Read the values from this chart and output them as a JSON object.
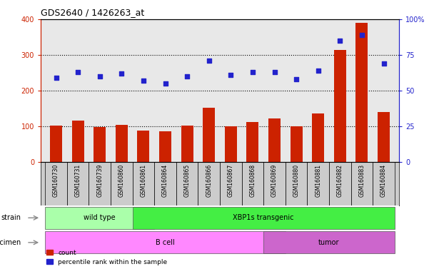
{
  "title": "GDS2640 / 1426263_at",
  "samples": [
    "GSM160730",
    "GSM160731",
    "GSM160739",
    "GSM160860",
    "GSM160861",
    "GSM160864",
    "GSM160865",
    "GSM160866",
    "GSM160867",
    "GSM160868",
    "GSM160869",
    "GSM160880",
    "GSM160881",
    "GSM160882",
    "GSM160883",
    "GSM160884"
  ],
  "counts": [
    101,
    116,
    97,
    103,
    88,
    86,
    101,
    152,
    100,
    111,
    122,
    100,
    136,
    313,
    390,
    139
  ],
  "percentile": [
    59,
    63,
    60,
    62,
    57,
    55,
    60,
    71,
    61,
    63,
    63,
    58,
    64,
    85,
    89,
    69
  ],
  "count_color": "#cc2200",
  "percentile_color": "#2222cc",
  "ylim_left": [
    0,
    400
  ],
  "ylim_right": [
    0,
    100
  ],
  "yticks_left": [
    0,
    100,
    200,
    300,
    400
  ],
  "yticks_right": [
    0,
    25,
    50,
    75,
    100
  ],
  "yticklabels_right": [
    "0",
    "25",
    "50",
    "75",
    "100%"
  ],
  "strain_groups": [
    {
      "label": "wild type",
      "start": 0,
      "end": 4,
      "color": "#aaffaa"
    },
    {
      "label": "XBP1s transgenic",
      "start": 4,
      "end": 15,
      "color": "#44ee44"
    }
  ],
  "specimen_groups": [
    {
      "label": "B cell",
      "start": 0,
      "end": 10,
      "color": "#ff88ff"
    },
    {
      "label": "tumor",
      "start": 10,
      "end": 15,
      "color": "#cc66cc"
    }
  ],
  "strain_label": "strain",
  "specimen_label": "specimen",
  "legend_count": "count",
  "legend_percentile": "percentile rank within the sample",
  "plot_bg_color": "#e8e8e8",
  "bar_width": 0.55,
  "dotted_lines": [
    100,
    200,
    300
  ]
}
